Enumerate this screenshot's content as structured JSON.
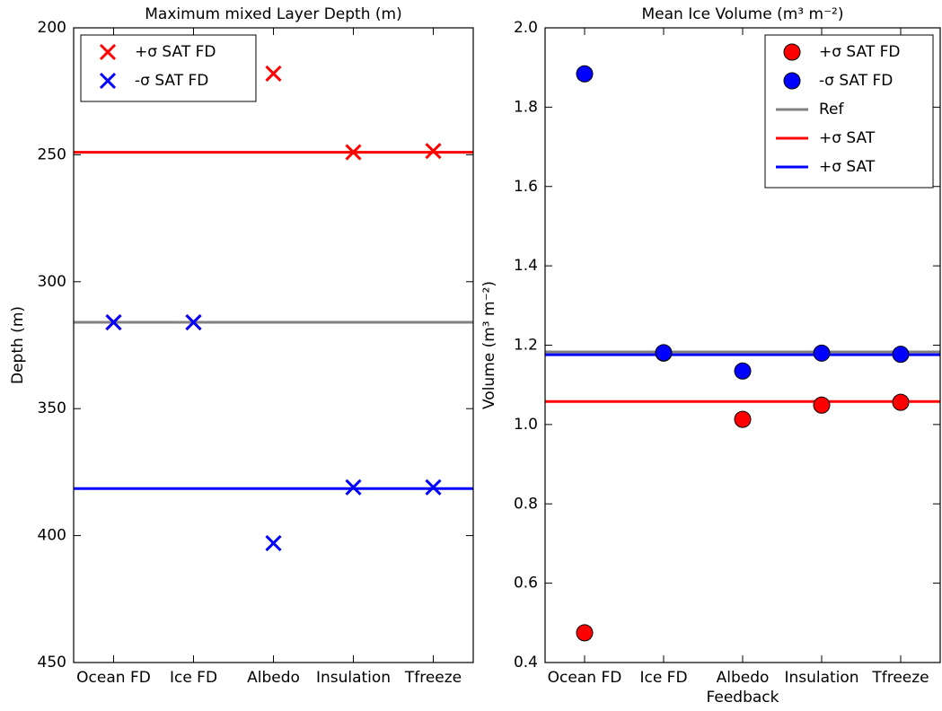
{
  "chart_data": [
    {
      "type": "scatter",
      "title": "Maximum mixed Layer Depth (m)",
      "y_label": "Depth (m)",
      "categories": [
        "Ocean FD",
        "Ice FD",
        "Albedo",
        "Insulation",
        "Tfreeze"
      ],
      "ylim": [
        450,
        200
      ],
      "yticks": [
        200,
        250,
        300,
        350,
        400,
        450
      ],
      "legend": "upper left",
      "series": [
        {
          "name": "+σ SAT FD",
          "color": "#ff0000",
          "marker": "x",
          "values": [
            316,
            316,
            218,
            249,
            248.5
          ]
        },
        {
          "name": "-σ SAT FD",
          "color": "#0000ff",
          "marker": "x",
          "values": [
            316,
            316,
            403,
            381,
            381
          ]
        }
      ],
      "hlines": [
        {
          "color": "#ff0000",
          "value": 249
        },
        {
          "color": "#808080",
          "value": 316
        },
        {
          "color": "#0000ff",
          "value": 381.5
        }
      ]
    },
    {
      "type": "scatter",
      "title": "Mean Ice Volume (m³ m⁻²)",
      "y_label": "Volume (m³ m⁻²)",
      "x_label": "Feedback",
      "categories": [
        "Ocean FD",
        "Ice FD",
        "Albedo",
        "Insulation",
        "Tfreeze"
      ],
      "ylim": [
        0.4,
        2.0
      ],
      "yticks": [
        0.4,
        0.6,
        0.8,
        {
          "value": 1.0,
          "label": "1.0"
        },
        1.2,
        1.4,
        1.6,
        1.8,
        {
          "value": 2.0,
          "label": "2.0"
        }
      ],
      "legend": "upper right",
      "series": [
        {
          "name": "+σ SAT FD",
          "color": "#ff0000",
          "marker": "o",
          "values": [
            0.475,
            1.18,
            1.013,
            1.049,
            1.056
          ]
        },
        {
          "name": "-σ SAT FD",
          "color": "#0000ff",
          "marker": "o",
          "values": [
            1.884,
            1.181,
            1.135,
            1.18,
            1.177
          ]
        }
      ],
      "hlines": [
        {
          "name": "Ref",
          "color": "#808080",
          "value": 1.183
        },
        {
          "name": "+σ SAT",
          "color": "#ff0000",
          "value": 1.058
        },
        {
          "name": "+σ SAT",
          "color": "#0000ff",
          "value": 1.176
        }
      ]
    }
  ]
}
